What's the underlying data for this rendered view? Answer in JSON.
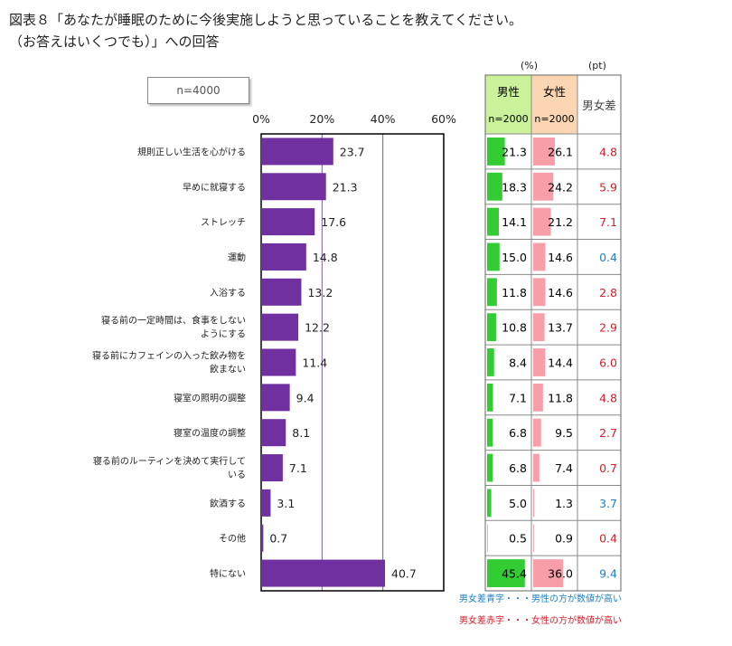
{
  "title_line1": "図表８「あなたが睡眠のために今後実施しようと思っていることを教えてください。",
  "title_line2": "（お答えはいくつでも）」への回答",
  "sample_label": "n=4000",
  "table": {
    "unit_pct": "(%)",
    "unit_pt": "(pt)",
    "male_header": "男性",
    "female_header": "女性",
    "diff_header": "男女差",
    "male_n": "n=2000",
    "female_n": "n=2000",
    "colors": {
      "male_header_bg": "#c9f29b",
      "female_header_bg": "#fcd6b3",
      "male_bar": "#33cc33",
      "female_bar": "#f79ea8",
      "blue": "#1f7fc4",
      "red": "#d11f2c"
    }
  },
  "legend": {
    "blue_note": "男女差青字・・・男性の方が数値が高い",
    "red_note": "男女差赤字・・・女性の方が数値が高い"
  },
  "chart_data": {
    "type": "bar",
    "orientation": "horizontal",
    "bar_color": "#7030a0",
    "xlim": [
      0,
      60
    ],
    "x_ticks": [
      "0%",
      "20%",
      "40%",
      "60%"
    ],
    "categories": [
      [
        "規則正しい生活を心がける"
      ],
      [
        "早めに就寝する"
      ],
      [
        "ストレッチ"
      ],
      [
        "運動"
      ],
      [
        "入浴する"
      ],
      [
        "寝る前の一定時間は、食事をしない",
        "ようにする"
      ],
      [
        "寝る前にカフェインの入った飲み物を",
        "飲まない"
      ],
      [
        "寝室の照明の調整"
      ],
      [
        "寝室の温度の調整"
      ],
      [
        "寝る前のルーティンを決めて実行して",
        "いる"
      ],
      [
        "飲酒する"
      ],
      [
        "その他"
      ],
      [
        "特にない"
      ]
    ],
    "values": [
      23.7,
      21.3,
      17.6,
      14.8,
      13.2,
      12.2,
      11.4,
      9.4,
      8.1,
      7.1,
      3.1,
      0.7,
      40.7
    ],
    "male": [
      "21.3",
      "18.3",
      "14.1",
      "15.0",
      "11.8",
      "10.8",
      "8.4",
      "7.1",
      "6.8",
      "6.8",
      "5.0",
      "0.5",
      "45.4"
    ],
    "female": [
      "26.1",
      "24.2",
      "21.2",
      "14.6",
      "14.6",
      "13.7",
      "14.4",
      "11.8",
      "9.5",
      "7.4",
      "1.3",
      "0.9",
      "36.0"
    ],
    "diff": [
      "4.8",
      "5.9",
      "7.1",
      "0.4",
      "2.8",
      "2.9",
      "6.0",
      "4.8",
      "2.7",
      "0.7",
      "3.7",
      "0.4",
      "9.4"
    ],
    "diff_color": [
      "red",
      "red",
      "red",
      "blue",
      "red",
      "red",
      "red",
      "red",
      "red",
      "red",
      "blue",
      "red",
      "blue"
    ]
  }
}
